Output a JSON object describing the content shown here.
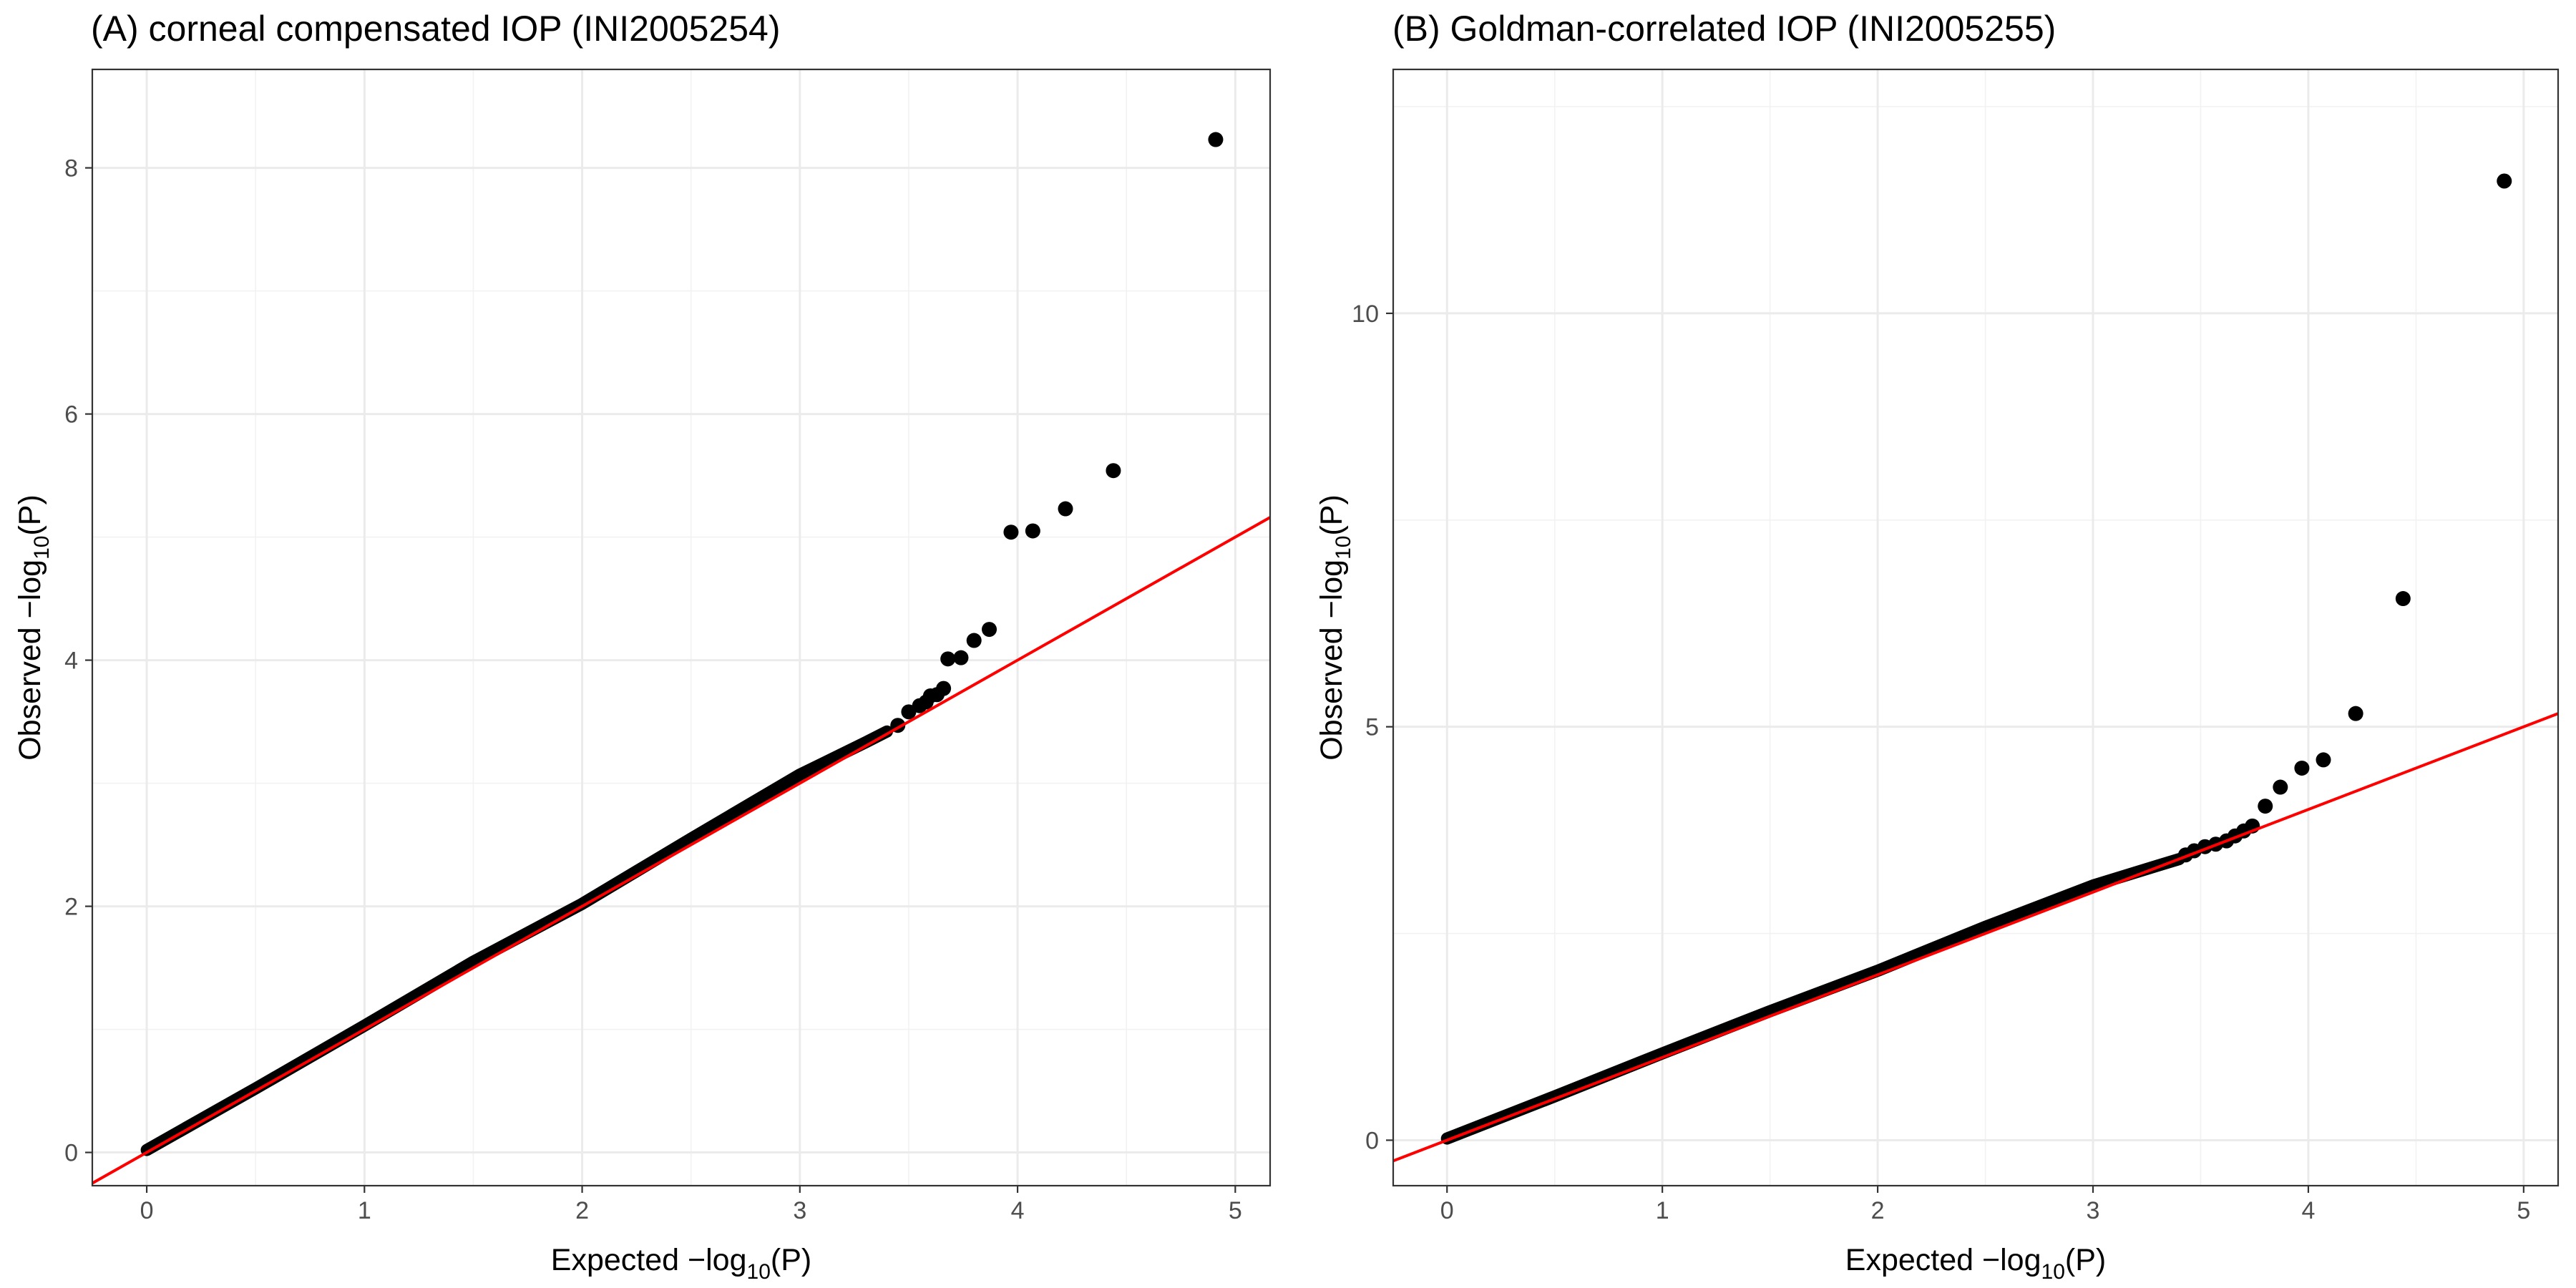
{
  "colors": {
    "points": "#000000",
    "reference_line": "#ff0000",
    "grid_major": "#ebebeb",
    "grid_minor": "#f2f2f2",
    "border": "#333333",
    "tick_text": "#4d4d4d"
  },
  "chart_data": [
    {
      "type": "scatter",
      "title": "(A) corneal compensated IOP (INI2005254)",
      "xlabel": "Expected  −log10(P)",
      "xlabel_main": "Expected  −log",
      "xlabel_sub": "10",
      "xlabel_tail": "(P)",
      "ylabel": "Observed  −log10(P)",
      "ylabel_main": "Observed  −log",
      "ylabel_sub": "10",
      "ylabel_tail": "(P)",
      "xlim": [
        -0.25,
        5.16
      ],
      "ylim": [
        -0.27,
        8.8
      ],
      "xticks": [
        0,
        1,
        2,
        3,
        4,
        5
      ],
      "xtick_labels": [
        "0",
        "1",
        "2",
        "3",
        "4",
        "5"
      ],
      "yticks": [
        0,
        2,
        4,
        6,
        8
      ],
      "ytick_labels": [
        "0",
        "2",
        "4",
        "6",
        "8"
      ],
      "grid": true,
      "legend": "none",
      "reference_line": {
        "slope": 1,
        "intercept": 0
      },
      "bulk_curve": {
        "x": [
          0,
          0.5,
          1.0,
          1.5,
          2.0,
          2.5,
          3.0,
          3.3,
          3.4
        ],
        "y": [
          0.02,
          0.52,
          1.03,
          1.55,
          2.02,
          2.55,
          3.07,
          3.33,
          3.42
        ]
      },
      "points": [
        {
          "x": 3.45,
          "y": 3.47
        },
        {
          "x": 3.5,
          "y": 3.58
        },
        {
          "x": 3.55,
          "y": 3.63
        },
        {
          "x": 3.58,
          "y": 3.66
        },
        {
          "x": 3.6,
          "y": 3.71
        },
        {
          "x": 3.63,
          "y": 3.72
        },
        {
          "x": 3.66,
          "y": 3.77
        },
        {
          "x": 3.68,
          "y": 4.01
        },
        {
          "x": 3.74,
          "y": 4.02
        },
        {
          "x": 3.8,
          "y": 4.16
        },
        {
          "x": 3.87,
          "y": 4.25
        },
        {
          "x": 3.97,
          "y": 5.04
        },
        {
          "x": 4.07,
          "y": 5.05
        },
        {
          "x": 4.22,
          "y": 5.23
        },
        {
          "x": 4.44,
          "y": 5.54
        },
        {
          "x": 4.91,
          "y": 8.23
        }
      ]
    },
    {
      "type": "scatter",
      "title": "(B) Goldman-correlated IOP (INI2005255)",
      "xlabel": "Expected  −log10(P)",
      "xlabel_main": "Expected  −log",
      "xlabel_sub": "10",
      "xlabel_tail": "(P)",
      "ylabel": "Observed  −log10(P)",
      "ylabel_main": "Observed  −log",
      "ylabel_sub": "10",
      "ylabel_tail": "(P)",
      "xlim": [
        -0.25,
        5.16
      ],
      "ylim": [
        -0.55,
        12.95
      ],
      "xticks": [
        0,
        1,
        2,
        3,
        4,
        5
      ],
      "xtick_labels": [
        "0",
        "1",
        "2",
        "3",
        "4",
        "5"
      ],
      "yticks": [
        0,
        5,
        10
      ],
      "ytick_labels": [
        "0",
        "5",
        "10"
      ],
      "grid": true,
      "legend": "none",
      "reference_line": {
        "slope": 1,
        "intercept": 0
      },
      "bulk_curve": {
        "x": [
          0,
          0.5,
          1.0,
          1.5,
          2.0,
          2.5,
          3.0,
          3.3,
          3.4
        ],
        "y": [
          0.02,
          0.53,
          1.05,
          1.56,
          2.05,
          2.58,
          3.08,
          3.32,
          3.4
        ]
      },
      "points": [
        {
          "x": 3.43,
          "y": 3.45
        },
        {
          "x": 3.47,
          "y": 3.5
        },
        {
          "x": 3.52,
          "y": 3.55
        },
        {
          "x": 3.57,
          "y": 3.58
        },
        {
          "x": 3.62,
          "y": 3.62
        },
        {
          "x": 3.66,
          "y": 3.68
        },
        {
          "x": 3.7,
          "y": 3.74
        },
        {
          "x": 3.74,
          "y": 3.8
        },
        {
          "x": 3.8,
          "y": 4.04
        },
        {
          "x": 3.87,
          "y": 4.27
        },
        {
          "x": 3.97,
          "y": 4.5
        },
        {
          "x": 4.07,
          "y": 4.6
        },
        {
          "x": 4.22,
          "y": 5.16
        },
        {
          "x": 4.44,
          "y": 6.55
        },
        {
          "x": 4.91,
          "y": 11.6
        }
      ]
    }
  ]
}
